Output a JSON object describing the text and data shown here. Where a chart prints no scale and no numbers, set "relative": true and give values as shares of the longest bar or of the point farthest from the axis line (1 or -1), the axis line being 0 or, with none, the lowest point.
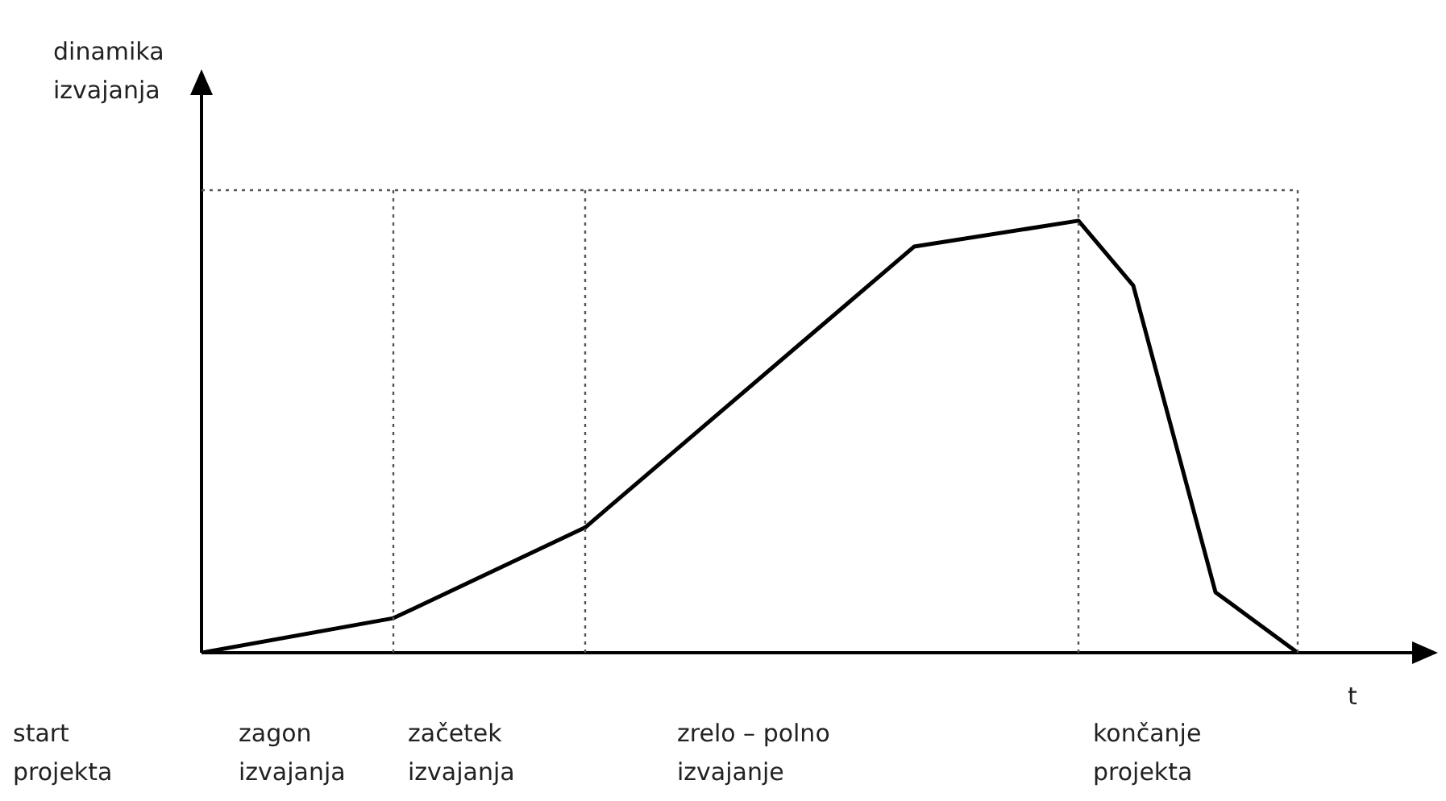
{
  "chart_data": {
    "type": "line",
    "relative": true,
    "xlabel": "t",
    "ylabel": "dinamika izvajanja",
    "categories": [
      null,
      null,
      null,
      null,
      null,
      null,
      null,
      null,
      null,
      null,
      null,
      null,
      null,
      null,
      null,
      null,
      null,
      null,
      null,
      null,
      null,
      null,
      null,
      null,
      null,
      null,
      null,
      null,
      null,
      null,
      null,
      null,
      null,
      null,
      null,
      null,
      null,
      null,
      null,
      null,
      null
    ],
    "series": [
      {
        "color": "#000000",
        "values": [
          0,
          null,
          null,
          null,
          null,
          null,
          null,
          0.08,
          null,
          null,
          null,
          null,
          null,
          null,
          0.29,
          null,
          null,
          null,
          null,
          null,
          null,
          null,
          null,
          null,
          null,
          null,
          0.94,
          null,
          null,
          null,
          null,
          null,
          1,
          null,
          0.85,
          null,
          null,
          0.14,
          null,
          null,
          0
        ]
      }
    ],
    "annotations": [
      "start projekta",
      "zagon izvajanja",
      "začetek izvajanja",
      "zrelo – polno izvajanje",
      "končanje projekta"
    ],
    "grid": true,
    "legend": false,
    "marker": "none",
    "line_style": "solid"
  }
}
